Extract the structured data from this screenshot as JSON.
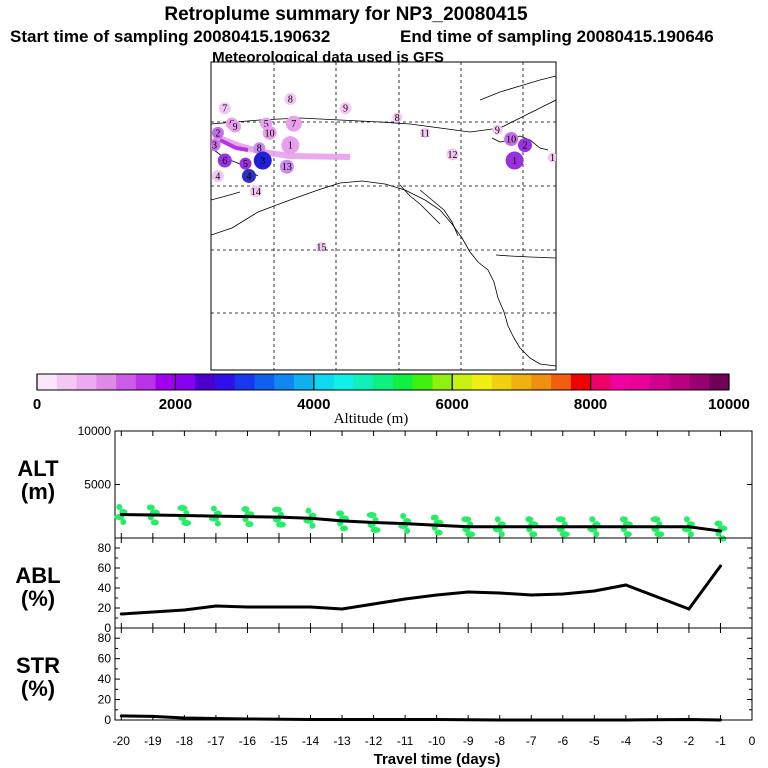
{
  "header": {
    "title": "Retroplume summary for NP3_20080415",
    "start": "Start time of sampling 20080415.190632",
    "end": "End time of sampling 20080415.190646",
    "met": "Meteorological data used is GFS"
  },
  "map": {
    "markers": [
      {
        "label": "7",
        "lon": 0.04,
        "lat": 0.15,
        "color": "#f4c6f4",
        "r": 6
      },
      {
        "label": "8",
        "lon": 0.23,
        "lat": 0.12,
        "color": "#f4c6f4",
        "r": 6
      },
      {
        "label": "9",
        "lon": 0.39,
        "lat": 0.15,
        "color": "#f4c6f4",
        "r": 6
      },
      {
        "label": "6",
        "lon": 0.06,
        "lat": 0.2,
        "color": "#e8a0ec",
        "r": 6
      },
      {
        "label": "9",
        "lon": 0.07,
        "lat": 0.21,
        "color": "#e8a0ec",
        "r": 6
      },
      {
        "label": "5",
        "lon": 0.16,
        "lat": 0.2,
        "color": "#e8a0ec",
        "r": 6
      },
      {
        "label": "7",
        "lon": 0.24,
        "lat": 0.2,
        "color": "#e8a0ec",
        "r": 8
      },
      {
        "label": "10",
        "lon": 0.17,
        "lat": 0.23,
        "color": "#e8a0ec",
        "r": 7
      },
      {
        "label": "2",
        "lon": 0.02,
        "lat": 0.23,
        "color": "#c66ee8",
        "r": 6
      },
      {
        "label": "3",
        "lon": 0.01,
        "lat": 0.27,
        "color": "#c66ee8",
        "r": 6
      },
      {
        "label": "1",
        "lon": 0.23,
        "lat": 0.27,
        "color": "#e8a0ec",
        "r": 9
      },
      {
        "label": "8",
        "lon": 0.14,
        "lat": 0.28,
        "color": "#cc88ee",
        "r": 6
      },
      {
        "label": "6",
        "lon": 0.04,
        "lat": 0.32,
        "color": "#9a30e0",
        "r": 7
      },
      {
        "label": "5",
        "lon": 0.1,
        "lat": 0.33,
        "color": "#9a30e0",
        "r": 6
      },
      {
        "label": "3",
        "lon": 0.15,
        "lat": 0.32,
        "color": "#2020d8",
        "r": 9
      },
      {
        "label": "13",
        "lon": 0.22,
        "lat": 0.34,
        "color": "#cc88ee",
        "r": 7
      },
      {
        "label": "4",
        "lon": 0.02,
        "lat": 0.37,
        "color": "#f4c6f4",
        "r": 6
      },
      {
        "label": "4",
        "lon": 0.11,
        "lat": 0.37,
        "color": "#3030c0",
        "r": 7
      },
      {
        "label": "14",
        "lon": 0.13,
        "lat": 0.42,
        "color": "#f4c6f4",
        "r": 6
      },
      {
        "label": "8",
        "lon": 0.54,
        "lat": 0.18,
        "color": "#f4c6f4",
        "r": 5
      },
      {
        "label": "11",
        "lon": 0.62,
        "lat": 0.23,
        "color": "#f4c6f4",
        "r": 5
      },
      {
        "label": "9",
        "lon": 0.83,
        "lat": 0.22,
        "color": "#f4c6f4",
        "r": 5
      },
      {
        "label": "12",
        "lon": 0.7,
        "lat": 0.3,
        "color": "#f4c6f4",
        "r": 6
      },
      {
        "label": "10",
        "lon": 0.87,
        "lat": 0.25,
        "color": "#c66ee8",
        "r": 7
      },
      {
        "label": "2",
        "lon": 0.91,
        "lat": 0.27,
        "color": "#9a30e0",
        "r": 7
      },
      {
        "label": "1",
        "lon": 0.88,
        "lat": 0.32,
        "color": "#9a30e0",
        "r": 9
      },
      {
        "label": "1",
        "lon": 0.99,
        "lat": 0.31,
        "color": "#f4c6f4",
        "r": 5
      },
      {
        "label": "15",
        "lon": 0.32,
        "lat": 0.6,
        "color": "#f4c6f4",
        "r": 5
      }
    ]
  },
  "colorbar": {
    "colors": [
      "#fce6fc",
      "#f4c6f4",
      "#ecaaf0",
      "#e08ae8",
      "#cc5ce8",
      "#b832e8",
      "#a000ee",
      "#8800ee",
      "#4c00cc",
      "#3010e8",
      "#1838f0",
      "#1060f0",
      "#1088f0",
      "#10b0f0",
      "#10d8f0",
      "#10f0e8",
      "#10f0b8",
      "#10f080",
      "#10f040",
      "#40f010",
      "#90f010",
      "#c8f010",
      "#f0f010",
      "#f0d010",
      "#f0b010",
      "#f09010",
      "#f06010",
      "#f00000",
      "#f00068",
      "#f000a0",
      "#e80098",
      "#d00090",
      "#b80080",
      "#980070",
      "#700058"
    ],
    "ticks": [
      "0",
      "2000",
      "4000",
      "6000",
      "8000",
      "10000"
    ],
    "label": "Altitude (m)"
  },
  "chart_data": [
    {
      "type": "line",
      "name": "ALT",
      "ylabel": "ALT\n(m)",
      "ylabel_line1": "ALT",
      "ylabel_line2": "(m)",
      "ylim": [
        0,
        10000
      ],
      "yticks": [
        "10000",
        "5000"
      ],
      "ytick_values": [
        10000,
        5000
      ],
      "x": [
        -20,
        -19,
        -18,
        -17,
        -16,
        -15,
        -14,
        -13,
        -12,
        -11,
        -10,
        -9,
        -8,
        -7,
        -6,
        -5,
        -4,
        -3,
        -2,
        -1
      ],
      "values": [
        2200,
        2150,
        2100,
        2050,
        2000,
        1950,
        1850,
        1600,
        1450,
        1350,
        1200,
        1050,
        1050,
        1050,
        1050,
        1050,
        1050,
        1050,
        1050,
        650
      ],
      "scatter_color": "#22ee66"
    },
    {
      "type": "line",
      "name": "ABL",
      "ylabel_line1": "ABL",
      "ylabel_line2": "(%)",
      "ylim": [
        0,
        90
      ],
      "yticks": [
        "80",
        "60",
        "40",
        "20",
        "0"
      ],
      "ytick_values": [
        80,
        60,
        40,
        20,
        0
      ],
      "x": [
        -20,
        -18,
        -17,
        -16,
        -15,
        -14,
        -13,
        -12,
        -11,
        -10,
        -9,
        -8,
        -7,
        -6,
        -5,
        -4,
        -3,
        -2,
        -1
      ],
      "values": [
        14,
        18,
        22,
        21,
        21,
        21,
        19,
        24,
        29,
        33,
        36,
        35,
        33,
        34,
        37,
        43,
        31,
        19,
        62
      ]
    },
    {
      "type": "line",
      "name": "STR",
      "ylabel_line1": "STR",
      "ylabel_line2": "(%)",
      "ylim": [
        0,
        90
      ],
      "yticks": [
        "80",
        "60",
        "40",
        "20",
        "0"
      ],
      "ytick_values": [
        80,
        60,
        40,
        20,
        0
      ],
      "x": [
        -20,
        -19,
        -18,
        -17,
        -16,
        -14,
        -12,
        -10,
        -8,
        -6,
        -4,
        -2,
        -1
      ],
      "values": [
        4,
        3.5,
        2,
        1.5,
        1,
        0.5,
        0.5,
        0.5,
        0,
        0,
        0,
        0.5,
        0
      ]
    }
  ],
  "xaxis": {
    "ticks": [
      "-20",
      "-19",
      "-18",
      "-17",
      "-16",
      "-15",
      "-14",
      "-13",
      "-12",
      "-11",
      "-10",
      "-9",
      "-8",
      "-7",
      "-6",
      "-5",
      "-4",
      "-3",
      "-2",
      "-1",
      "0"
    ],
    "values": [
      -20,
      -19,
      -18,
      -17,
      -16,
      -15,
      -14,
      -13,
      -12,
      -11,
      -10,
      -9,
      -8,
      -7,
      -6,
      -5,
      -4,
      -3,
      -2,
      -1,
      0
    ],
    "label": "Travel time (days)"
  }
}
